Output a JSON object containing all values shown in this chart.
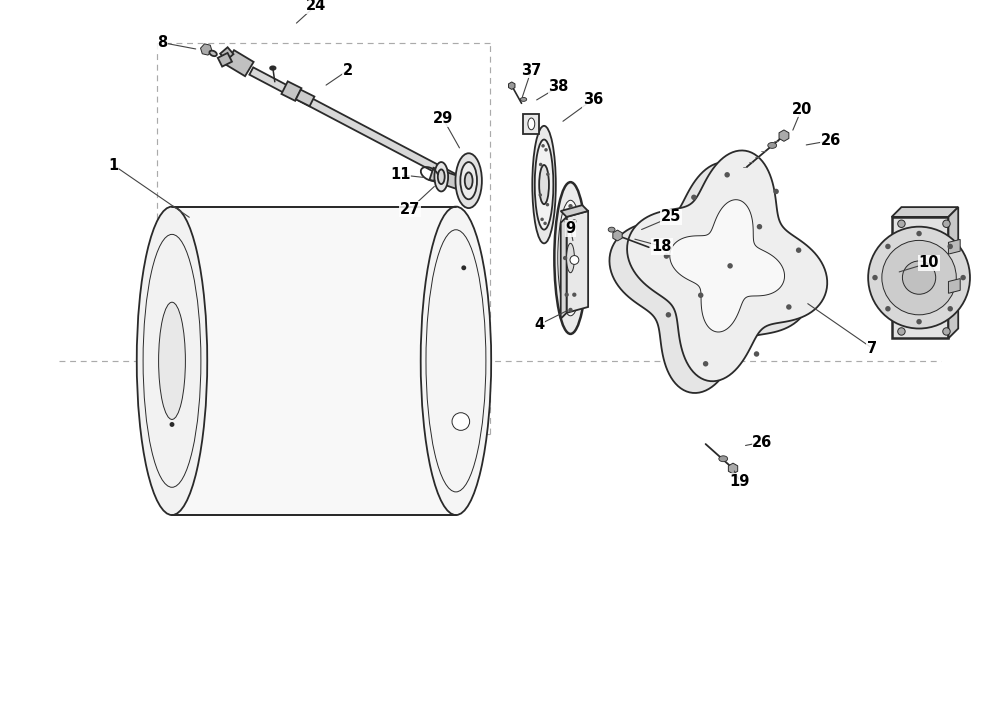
{
  "bg_color": "#ffffff",
  "line_color": "#2a2a2a",
  "lw_main": 1.3,
  "lw_thin": 0.7,
  "lw_thick": 1.8,
  "label_fontsize": 10.5,
  "figsize": [
    10.0,
    7.28
  ],
  "dpi": 100
}
